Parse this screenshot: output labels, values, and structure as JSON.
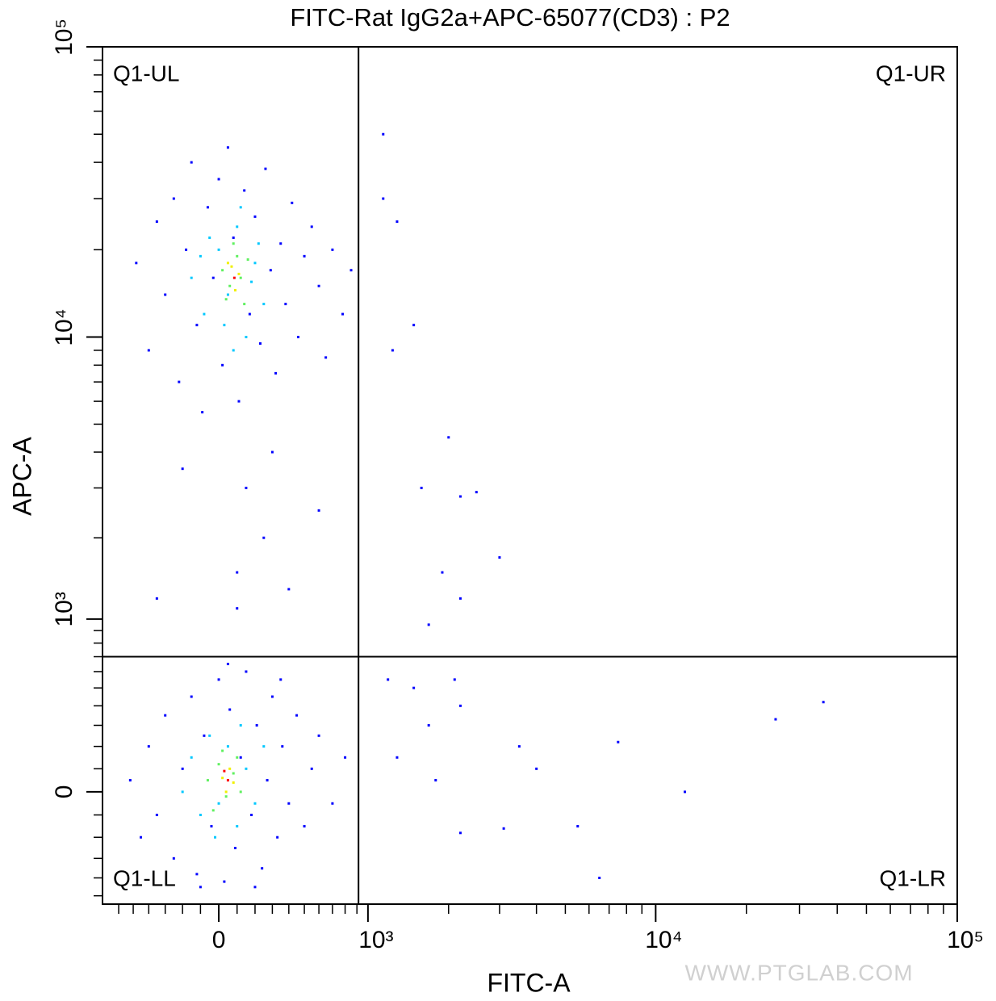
{
  "chart_data": {
    "type": "scatter",
    "title": "FITC-Rat IgG2a+APC-65077(CD3) : P2",
    "xlabel": "FITC-A",
    "ylabel": "APC-A",
    "watermark": "WWW.PTGLAB.COM",
    "xscale": "biexponential",
    "yscale": "biexponential",
    "xlim": [
      -720,
      100000
    ],
    "ylim": [
      -550,
      100000
    ],
    "xticks": [
      0,
      {
        "value": 1000,
        "label": "10³"
      },
      {
        "value": 10000,
        "label": "10⁴"
      },
      {
        "value": 100000,
        "label": "10⁵"
      }
    ],
    "yticks": [
      0,
      {
        "value": 1000,
        "label": "10³"
      },
      {
        "value": 10000,
        "label": "10⁴"
      },
      {
        "value": 100000,
        "label": "10⁵"
      }
    ],
    "xminorticks": [
      -600,
      -500,
      -400,
      -300,
      -200,
      -100,
      100,
      200,
      300,
      400,
      500,
      600,
      700,
      800,
      900,
      2000,
      3000,
      4000,
      5000,
      6000,
      7000,
      8000,
      9000,
      20000,
      30000,
      40000,
      50000,
      60000,
      70000,
      80000,
      90000
    ],
    "yminorticks": [
      -500,
      -400,
      -300,
      -200,
      -100,
      100,
      200,
      300,
      400,
      500,
      600,
      700,
      800,
      900,
      2000,
      3000,
      4000,
      5000,
      6000,
      7000,
      8000,
      9000,
      20000,
      30000,
      40000,
      50000,
      60000,
      70000,
      80000,
      90000
    ],
    "gates": {
      "x": 914,
      "y": 700
    },
    "quadrant_labels": [
      "Q1-UL",
      "Q1-UR",
      "Q1-LL",
      "Q1-LR"
    ],
    "series": [
      {
        "color": "#0000ff",
        "x": [
          -480,
          -400,
          -350,
          -300,
          -250,
          -220,
          -180,
          -150,
          -120,
          -90,
          -60,
          -30,
          0,
          20,
          50,
          80,
          110,
          140,
          170,
          200,
          230,
          260,
          290,
          320,
          350,
          380,
          420,
          460,
          500,
          550,
          600,
          650,
          700,
          780,
          850,
          300,
          150,
          -200,
          100,
          250,
          100,
          -350,
          400,
          600,
          -520,
          -450,
          -400,
          -350,
          -300,
          -250,
          -200,
          -150,
          -120,
          -80,
          -40,
          0,
          30,
          60,
          90,
          120,
          150,
          180,
          210,
          240,
          270,
          300,
          330,
          360,
          400,
          450,
          500,
          550,
          600,
          700,
          800,
          50,
          -100,
          200,
          350,
          1150,
          1150,
          1300,
          1500,
          1250,
          2000,
          1600,
          2200,
          2500,
          3000,
          1900,
          2200,
          1700,
          1200,
          1500,
          2100,
          2200,
          1700,
          3500,
          4000,
          1800,
          7500,
          12500,
          25000,
          36000,
          5500,
          3100,
          6500,
          2200,
          1300
        ],
        "values": [
          18000,
          9000,
          25000,
          14000,
          30000,
          7000,
          20000,
          40000,
          11000,
          5500,
          28000,
          16000,
          35000,
          8000,
          45000,
          22000,
          6000,
          32000,
          12000,
          26000,
          9500,
          38000,
          17000,
          7500,
          21000,
          13000,
          29000,
          10000,
          19000,
          24000,
          15000,
          8500,
          20000,
          12000,
          17000,
          4000,
          3000,
          3500,
          1500,
          2000,
          1100,
          1200,
          1300,
          2500,
          50,
          -200,
          200,
          -100,
          350,
          -300,
          100,
          450,
          -380,
          250,
          -150,
          550,
          -420,
          380,
          -250,
          150,
          600,
          -100,
          300,
          -350,
          50,
          450,
          -200,
          200,
          -50,
          350,
          -150,
          100,
          250,
          -50,
          150,
          650,
          -450,
          -450,
          550,
          50000,
          30000,
          25000,
          11000,
          9000,
          4500,
          3000,
          2800,
          2900,
          1700,
          1500,
          1200,
          950,
          550,
          500,
          550,
          400,
          300,
          200,
          100,
          50,
          220,
          0,
          330,
          420,
          -150,
          -160,
          -400,
          -180,
          150
        ]
      },
      {
        "color": "#00c8ff",
        "x": [
          -150,
          -80,
          0,
          50,
          100,
          150,
          200,
          250,
          80,
          -50,
          120,
          180,
          30,
          220,
          -100,
          -200,
          -150,
          -100,
          -50,
          0,
          50,
          100,
          150,
          200,
          250,
          -20,
          120
        ],
        "values": [
          16000,
          12000,
          20000,
          14000,
          24000,
          10000,
          18000,
          13000,
          9000,
          22000,
          28000,
          15500,
          11000,
          21000,
          19000,
          0,
          150,
          -100,
          250,
          -50,
          200,
          -150,
          100,
          -50,
          200,
          -200,
          300
        ]
      },
      {
        "color": "#60f060",
        "x": [
          20,
          60,
          100,
          140,
          80,
          40,
          120,
          160,
          -60,
          0,
          40,
          80,
          120,
          20,
          100,
          -30
        ],
        "values": [
          17000,
          15000,
          19000,
          13000,
          21000,
          13500,
          16000,
          18500,
          50,
          120,
          -20,
          80,
          0,
          180,
          150,
          -80
        ]
      },
      {
        "color": "#f0f000",
        "x": [
          70,
          110,
          90,
          50,
          20,
          60,
          40,
          80
        ],
        "values": [
          17500,
          16500,
          14500,
          18000,
          60,
          100,
          0,
          40
        ]
      },
      {
        "color": "#ff0000",
        "x": [
          85,
          50,
          30
        ],
        "values": [
          16000,
          50,
          90
        ]
      }
    ]
  }
}
